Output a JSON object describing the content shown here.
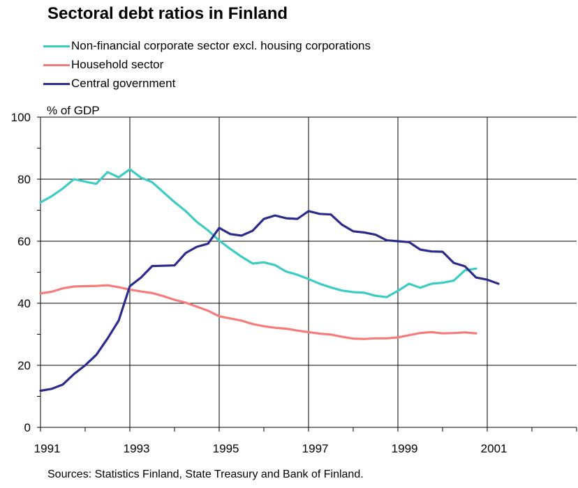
{
  "title": "Sectoral debt ratios in Finland",
  "sources": "Sources:  Statistics Finland, State Treasury and Bank of Finland.",
  "chart_data": {
    "type": "line",
    "title": "Sectoral debt ratios in Finland",
    "xlabel": "",
    "ylabel": "% of GDP",
    "xlim": [
      1991,
      2003
    ],
    "ylim": [
      0,
      100
    ],
    "yticks": [
      0,
      20,
      40,
      60,
      80,
      100
    ],
    "xtick_labels": [
      "1991",
      "1993",
      "1995",
      "1997",
      "1999",
      "2001"
    ],
    "xtick_values": [
      1991,
      1993,
      1995,
      1997,
      1999,
      2001
    ],
    "grid": true,
    "legend_position": "top-left",
    "series": [
      {
        "name": "Non-financial corporate sector excl. housing corporations",
        "color": "#3cccc4",
        "x": [
          1991.0,
          1991.25,
          1991.5,
          1991.75,
          1992.0,
          1992.25,
          1992.5,
          1992.75,
          1993.0,
          1993.25,
          1993.5,
          1993.75,
          1994.0,
          1994.25,
          1994.5,
          1994.75,
          1995.0,
          1995.25,
          1995.5,
          1995.75,
          1996.0,
          1996.25,
          1996.5,
          1996.75,
          1997.0,
          1997.25,
          1997.5,
          1997.75,
          1998.0,
          1998.25,
          1998.5,
          1998.75,
          1999.0,
          1999.25,
          1999.5,
          1999.75,
          2000.0,
          2000.25,
          2000.5,
          2000.75
        ],
        "y": [
          72.5,
          74.5,
          77,
          80,
          79.2,
          78.5,
          82.3,
          80.6,
          83.2,
          80.5,
          79,
          75.8,
          72.6,
          69.7,
          66.2,
          63.5,
          60.2,
          57.5,
          55,
          52.8,
          53.2,
          52.3,
          50.2,
          49.2,
          47.8,
          46.3,
          45.1,
          44.1,
          43.6,
          43.4,
          42.4,
          42,
          44,
          46.3,
          45,
          46.3,
          46.6,
          47.3,
          50.6,
          51.2
        ]
      },
      {
        "name": "Household sector",
        "color": "#f47c7c",
        "x": [
          1991.0,
          1991.25,
          1991.5,
          1991.75,
          1992.0,
          1992.25,
          1992.5,
          1992.75,
          1993.0,
          1993.25,
          1993.5,
          1993.75,
          1994.0,
          1994.25,
          1994.5,
          1994.75,
          1995.0,
          1995.25,
          1995.5,
          1995.75,
          1996.0,
          1996.25,
          1996.5,
          1996.75,
          1997.0,
          1997.25,
          1997.5,
          1997.75,
          1998.0,
          1998.25,
          1998.5,
          1998.75,
          1999.0,
          1999.25,
          1999.5,
          1999.75,
          2000.0,
          2000.25,
          2000.5,
          2000.75
        ],
        "y": [
          43.2,
          43.7,
          44.8,
          45.4,
          45.5,
          45.6,
          45.8,
          45.2,
          44.4,
          43.8,
          43.3,
          42.3,
          41.1,
          40.2,
          38.9,
          37.6,
          35.8,
          35.1,
          34.4,
          33.3,
          32.6,
          32.1,
          31.8,
          31.2,
          30.7,
          30.2,
          29.9,
          29.2,
          28.6,
          28.5,
          28.7,
          28.7,
          29.0,
          29.7,
          30.4,
          30.7,
          30.3,
          30.4,
          30.6,
          30.3
        ]
      },
      {
        "name": "Central government",
        "color": "#2b2b8c",
        "x": [
          1991.0,
          1991.25,
          1991.5,
          1991.75,
          1992.0,
          1992.25,
          1992.5,
          1992.75,
          1993.0,
          1993.25,
          1993.5,
          1993.75,
          1994.0,
          1994.25,
          1994.5,
          1994.75,
          1995.0,
          1995.25,
          1995.5,
          1995.75,
          1996.0,
          1996.25,
          1996.5,
          1996.75,
          1997.0,
          1997.25,
          1997.5,
          1997.75,
          1998.0,
          1998.25,
          1998.5,
          1998.75,
          1999.0,
          1999.25,
          1999.5,
          1999.75,
          2000.0,
          2000.25,
          2000.5,
          2000.75,
          2001.0,
          2001.25
        ],
        "y": [
          11.8,
          12.4,
          13.8,
          17.2,
          20,
          23.4,
          28.6,
          34.4,
          45.5,
          48.3,
          52,
          52.1,
          52.2,
          56.2,
          58.2,
          59.2,
          64.3,
          62.3,
          61.8,
          63.4,
          67.2,
          68.3,
          67.4,
          67.2,
          69.7,
          68.8,
          68.6,
          65.3,
          63.2,
          62.8,
          62.1,
          60.3,
          60,
          59.7,
          57.3,
          56.7,
          56.6,
          53,
          51.9,
          48.3,
          47.6,
          46.3
        ]
      }
    ]
  }
}
